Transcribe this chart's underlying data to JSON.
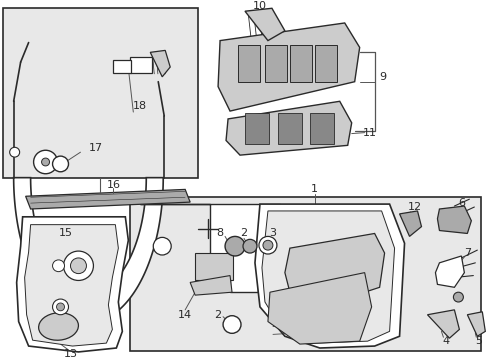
{
  "bg_color": "#ffffff",
  "box_bg": "#e8e8e8",
  "lc": "#2a2a2a",
  "gray1": "#cccccc",
  "gray2": "#aaaaaa",
  "gray3": "#888888",
  "white": "#ffffff",
  "figsize": [
    4.89,
    3.6
  ],
  "dpi": 100
}
